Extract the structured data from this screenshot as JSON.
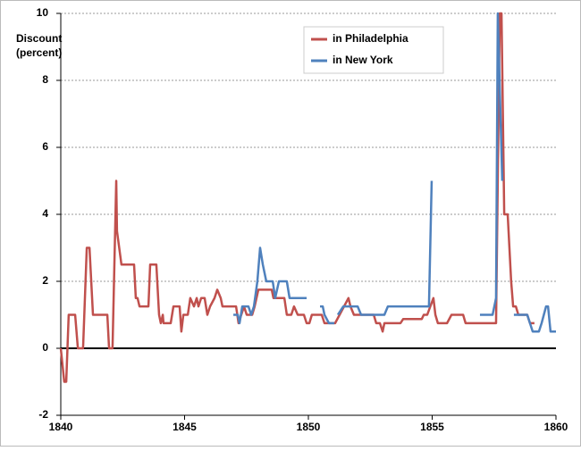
{
  "chart_data": {
    "type": "line",
    "ylabel": [
      "Discount",
      "(percent)"
    ],
    "xlim": [
      1840,
      1860
    ],
    "xticks": [
      1840,
      1845,
      1850,
      1855,
      1860
    ],
    "ylim": [
      -2,
      10
    ],
    "yticks": [
      -2,
      0,
      2,
      4,
      6,
      8,
      10
    ],
    "grid": true,
    "legend": "top",
    "series": [
      {
        "name": "in Philadelphia",
        "color": "#c0504d",
        "x": [
          1840.0,
          1840.14,
          1840.22,
          1840.32,
          1840.58,
          1840.69,
          1840.9,
          1841.05,
          1841.16,
          1841.3,
          1841.88,
          1841.95,
          1842.09,
          1842.24,
          1842.27,
          1842.45,
          1842.96,
          1843.03,
          1843.1,
          1843.18,
          1843.54,
          1843.61,
          1843.86,
          1843.97,
          1844.04,
          1844.12,
          1844.15,
          1844.44,
          1844.55,
          1844.8,
          1844.87,
          1844.95,
          1845.13,
          1845.23,
          1845.38,
          1845.49,
          1845.56,
          1845.67,
          1845.81,
          1845.92,
          1846.03,
          1846.21,
          1846.32,
          1846.46,
          1846.53,
          1847.08,
          1847.18,
          1847.29,
          1847.4,
          1847.51,
          1847.73,
          1847.83,
          1847.98,
          1848.52,
          1848.59,
          1849.03,
          1849.13,
          1849.31,
          1849.42,
          1849.57,
          1849.82,
          1849.93,
          1850.04,
          1850.14,
          1850.54,
          1850.65,
          1851.08,
          1851.26,
          1851.62,
          1851.7,
          1851.84,
          1852.64,
          1852.74,
          1852.89,
          1853.0,
          1853.07,
          1853.72,
          1853.83,
          1854.58,
          1854.66,
          1854.8,
          1855.05,
          1855.13,
          1855.23,
          1855.6,
          1855.78,
          1856.25,
          1856.35,
          1857.58,
          1857.73,
          1857.8,
          1857.91,
          1858.05,
          1858.19,
          1858.27,
          1858.38,
          1858.48,
          1858.84,
          1858.95,
          1859.13
        ],
        "values": [
          0,
          -1,
          -1,
          1,
          1,
          0,
          0,
          3,
          3,
          1,
          1,
          0,
          0,
          5,
          3.5,
          2.5,
          2.5,
          1.5,
          1.5,
          1.25,
          1.25,
          2.5,
          2.5,
          1,
          0.75,
          1,
          0.75,
          0.75,
          1.25,
          1.25,
          0.5,
          1,
          1,
          1.5,
          1.25,
          1.5,
          1.25,
          1.5,
          1.5,
          1,
          1.25,
          1.5,
          1.75,
          1.5,
          1.25,
          1.25,
          0.75,
          1,
          1.25,
          1,
          1,
          1.25,
          1.75,
          1.75,
          1.5,
          1.5,
          1,
          1,
          1.25,
          1,
          1,
          0.75,
          0.75,
          1,
          1,
          0.75,
          0.75,
          1,
          1.5,
          1.25,
          1,
          1,
          0.75,
          0.75,
          0.5,
          0.75,
          0.75,
          0.875,
          0.875,
          1,
          1,
          1.5,
          1,
          0.75,
          0.75,
          1,
          1,
          0.75,
          0.75,
          10,
          10,
          4,
          4,
          2,
          1.25,
          1.25,
          1,
          1,
          0.75,
          0.75
        ]
      },
      {
        "name": "in New York",
        "color": "#4f81bd",
        "x": [
          1846.97,
          1847.15,
          1847.22,
          1847.33,
          1847.58,
          1847.69,
          1847.8,
          1847.94,
          1848.05,
          1848.16,
          1848.3,
          1848.56,
          1848.66,
          1848.81,
          1849.13,
          1849.24,
          1849.93,
          1850.2,
          1850.47,
          1850.58,
          1850.65,
          1850.83,
          1851.05,
          1851.1,
          1851.19,
          1851.41,
          1851.99,
          1852.13,
          1853.07,
          1853.21,
          1854.87,
          1854.98,
          1856.0,
          1856.93,
          1857.44,
          1857.58,
          1857.65,
          1857.83,
          1858.0,
          1858.3,
          1858.84,
          1858.95,
          1859.06,
          1859.31,
          1859.42,
          1859.6,
          1859.68,
          1859.78,
          1860.0
        ],
        "values": [
          1,
          1,
          0.75,
          1.25,
          1.25,
          1,
          1.25,
          2,
          3,
          2.5,
          2,
          2,
          1.5,
          2,
          2,
          1.5,
          1.5,
          null,
          1.25,
          1.25,
          1,
          0.75,
          0.75,
          null,
          1,
          1.25,
          1.25,
          1,
          1,
          1.25,
          1.25,
          5,
          null,
          1,
          1,
          1.5,
          10,
          5,
          null,
          1,
          1,
          0.75,
          0.5,
          0.5,
          0.75,
          1.25,
          1.25,
          0.5,
          0.5
        ]
      }
    ]
  }
}
